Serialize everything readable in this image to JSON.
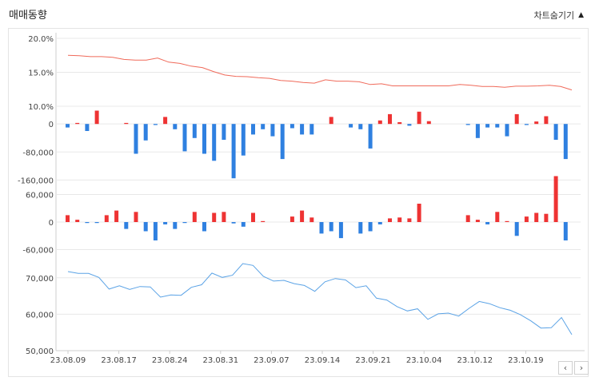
{
  "header": {
    "title": "매매동향",
    "toggle_label": "차트숨기기",
    "toggle_icon": "triangle-up-icon"
  },
  "nav": {
    "prev_icon": "chevron-left-icon",
    "next_icon": "chevron-right-icon"
  },
  "colors": {
    "positive": "#ee3333",
    "negative": "#2f80e0",
    "ratio_line": "#f06a5a",
    "price_line": "#5ba3e6",
    "grid": "#e8e8e8"
  },
  "chart_data": [
    {
      "type": "line",
      "name": "foreign-ratio",
      "y_ticks": [
        "20.0%",
        "15.0%",
        "10.0%"
      ],
      "ylim": [
        10,
        20
      ],
      "values": [
        17.5,
        17.45,
        17.3,
        17.3,
        17.2,
        16.9,
        16.8,
        16.8,
        17.1,
        16.5,
        16.3,
        15.9,
        15.7,
        15.1,
        14.6,
        14.4,
        14.35,
        14.2,
        14.1,
        13.8,
        13.7,
        13.5,
        13.4,
        13.9,
        13.7,
        13.7,
        13.6,
        13.2,
        13.3,
        13.0,
        13.0,
        13.0,
        13.0,
        13.0,
        13.0,
        13.2,
        13.1,
        12.9,
        12.9,
        12.8,
        12.95,
        12.95,
        13.0,
        13.1,
        12.9,
        12.4
      ]
    },
    {
      "type": "bar",
      "name": "panel-2",
      "y_ticks": [
        "0",
        "-80,000",
        "-160,000"
      ],
      "ylim": [
        -175000,
        30000
      ],
      "values": [
        -10000,
        3000,
        -20000,
        38000,
        0,
        0,
        3000,
        -85000,
        -47000,
        -3000,
        20000,
        -15000,
        -78000,
        -40000,
        -85000,
        -105000,
        -45000,
        -155000,
        -90000,
        -30000,
        -15000,
        -35000,
        -100000,
        -12000,
        -30000,
        -30000,
        0,
        20000,
        0,
        -10000,
        -15000,
        -70000,
        10000,
        28000,
        5000,
        -5000,
        35000,
        8000,
        0,
        0,
        0,
        -3000,
        -40000,
        -10000,
        -10000,
        -35000,
        28000,
        -3000,
        7000,
        22000,
        -45000,
        -100000
      ]
    },
    {
      "type": "bar",
      "name": "panel-3",
      "y_ticks": [
        "60,000",
        "0",
        "-60,000"
      ],
      "ylim": [
        -80000,
        80000
      ],
      "values": [
        15000,
        5000,
        -2000,
        -2000,
        15000,
        25000,
        -15000,
        22000,
        -20000,
        -40000,
        -5000,
        -15000,
        -2000,
        22000,
        -20000,
        20000,
        22000,
        -3000,
        -10000,
        20000,
        2000,
        0,
        0,
        12000,
        25000,
        10000,
        -25000,
        -20000,
        -35000,
        0,
        -25000,
        -20000,
        -5000,
        8000,
        10000,
        8000,
        40000,
        0,
        0,
        0,
        0,
        15000,
        5000,
        -5000,
        22000,
        2000,
        -30000,
        12000,
        20000,
        18000,
        100000,
        -40000
      ]
    },
    {
      "type": "line",
      "name": "price",
      "y_ticks": [
        "70,000",
        "60,000",
        "50,000"
      ],
      "ylim": [
        50000,
        75000
      ],
      "x_ticks": [
        "23.08.09",
        "23.08.17",
        "23.08.24",
        "23.08.31",
        "23.09.07",
        "23.09.14",
        "23.09.21",
        "23.10.04",
        "23.10.12",
        "23.10.19"
      ],
      "values": [
        71700,
        71200,
        71200,
        70100,
        66900,
        67800,
        66800,
        67600,
        67500,
        64700,
        65300,
        65200,
        67400,
        68100,
        71300,
        70100,
        70700,
        73900,
        73400,
        70400,
        69100,
        69300,
        68400,
        67900,
        66300,
        68900,
        69800,
        69400,
        67300,
        67800,
        64400,
        63900,
        62100,
        60900,
        61500,
        58600,
        60100,
        60300,
        59500,
        61600,
        63500,
        62900,
        61800,
        61100,
        59900,
        58200,
        56200,
        56300,
        59100,
        54400
      ]
    }
  ]
}
